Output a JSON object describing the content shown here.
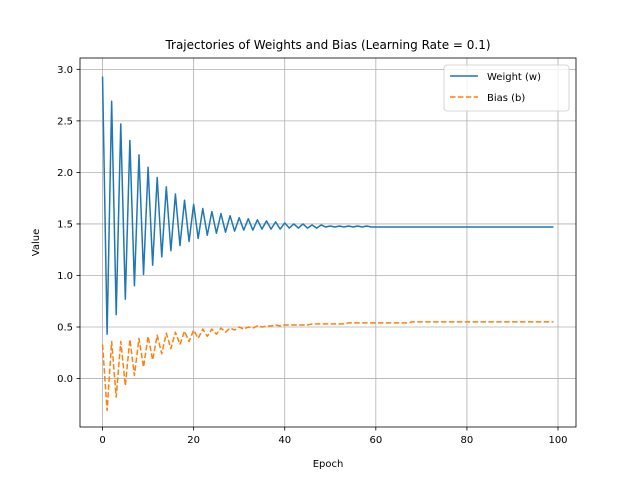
{
  "chart_data": {
    "type": "line",
    "title": "Trajectories of Weights and Bias (Learning Rate = 0.1)",
    "xlabel": "Epoch",
    "ylabel": "Value",
    "xlim": [
      -4.95,
      103.95
    ],
    "ylim": [
      -0.47,
      3.11
    ],
    "xticks": [
      0,
      20,
      40,
      60,
      80,
      100
    ],
    "yticks": [
      0.0,
      0.5,
      1.0,
      1.5,
      2.0,
      2.5,
      3.0
    ],
    "xtick_labels": [
      "0",
      "20",
      "40",
      "60",
      "80",
      "100"
    ],
    "ytick_labels": [
      "0.0",
      "0.5",
      "1.0",
      "1.5",
      "2.0",
      "2.5",
      "3.0"
    ],
    "grid": true,
    "legend_position": "top-right",
    "x": [
      0,
      1,
      2,
      3,
      4,
      5,
      6,
      7,
      8,
      9,
      10,
      11,
      12,
      13,
      14,
      15,
      16,
      17,
      18,
      19,
      20,
      21,
      22,
      23,
      24,
      25,
      26,
      27,
      28,
      29,
      30,
      31,
      32,
      33,
      34,
      35,
      36,
      37,
      38,
      39,
      40,
      41,
      42,
      43,
      44,
      45,
      46,
      47,
      48,
      49,
      50,
      51,
      52,
      53,
      54,
      55,
      56,
      57,
      58,
      59,
      60,
      61,
      62,
      63,
      64,
      65,
      66,
      67,
      68,
      69,
      70,
      71,
      72,
      73,
      74,
      75,
      76,
      77,
      78,
      79,
      80,
      81,
      82,
      83,
      84,
      85,
      86,
      87,
      88,
      89,
      90,
      91,
      92,
      93,
      94,
      95,
      96,
      97,
      98,
      99
    ],
    "series": [
      {
        "name": "Weight (w)",
        "color": "#1f77b4",
        "dash": "solid",
        "values": [
          2.93,
          0.43,
          2.69,
          0.62,
          2.47,
          0.77,
          2.31,
          0.9,
          2.17,
          1.01,
          2.05,
          1.1,
          1.95,
          1.18,
          1.86,
          1.24,
          1.79,
          1.29,
          1.73,
          1.33,
          1.69,
          1.36,
          1.65,
          1.39,
          1.62,
          1.41,
          1.6,
          1.42,
          1.58,
          1.43,
          1.56,
          1.44,
          1.55,
          1.44,
          1.54,
          1.45,
          1.53,
          1.45,
          1.52,
          1.45,
          1.51,
          1.46,
          1.5,
          1.46,
          1.5,
          1.46,
          1.49,
          1.46,
          1.49,
          1.47,
          1.48,
          1.47,
          1.48,
          1.47,
          1.48,
          1.47,
          1.48,
          1.47,
          1.48,
          1.47,
          1.47,
          1.47,
          1.47,
          1.47,
          1.47,
          1.47,
          1.47,
          1.47,
          1.47,
          1.47,
          1.47,
          1.47,
          1.47,
          1.47,
          1.47,
          1.47,
          1.47,
          1.47,
          1.47,
          1.47,
          1.47,
          1.47,
          1.47,
          1.47,
          1.47,
          1.47,
          1.47,
          1.47,
          1.47,
          1.47,
          1.47,
          1.47,
          1.47,
          1.47,
          1.47,
          1.47,
          1.47,
          1.47,
          1.47,
          1.47
        ]
      },
      {
        "name": "Bias (b)",
        "color": "#ff7f0e",
        "dash": "dashed",
        "values": [
          0.33,
          -0.31,
          0.36,
          -0.18,
          0.36,
          -0.07,
          0.38,
          0.03,
          0.39,
          0.11,
          0.41,
          0.18,
          0.42,
          0.24,
          0.44,
          0.29,
          0.45,
          0.33,
          0.46,
          0.36,
          0.47,
          0.39,
          0.48,
          0.41,
          0.48,
          0.43,
          0.49,
          0.45,
          0.49,
          0.47,
          0.5,
          0.48,
          0.5,
          0.49,
          0.51,
          0.5,
          0.51,
          0.51,
          0.52,
          0.51,
          0.52,
          0.52,
          0.52,
          0.52,
          0.52,
          0.52,
          0.53,
          0.53,
          0.53,
          0.53,
          0.53,
          0.53,
          0.53,
          0.53,
          0.54,
          0.54,
          0.54,
          0.54,
          0.54,
          0.54,
          0.54,
          0.54,
          0.54,
          0.54,
          0.54,
          0.54,
          0.54,
          0.54,
          0.55,
          0.55,
          0.55,
          0.55,
          0.55,
          0.55,
          0.55,
          0.55,
          0.55,
          0.55,
          0.55,
          0.55,
          0.55,
          0.55,
          0.55,
          0.55,
          0.55,
          0.55,
          0.55,
          0.55,
          0.55,
          0.55,
          0.55,
          0.55,
          0.55,
          0.55,
          0.55,
          0.55,
          0.55,
          0.55,
          0.55,
          0.55
        ]
      }
    ]
  }
}
